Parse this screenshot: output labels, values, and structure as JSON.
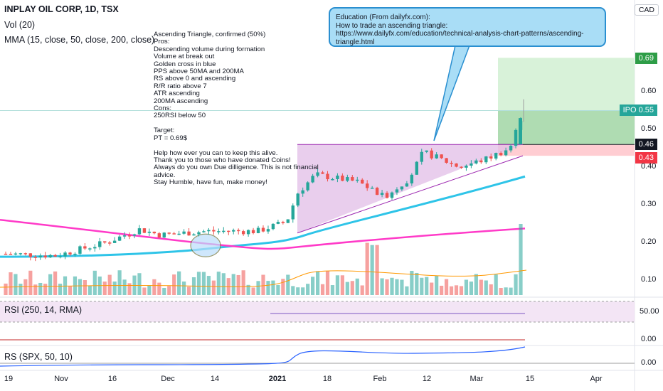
{
  "header": {
    "title": "INPLAY OIL CORP, 1D, TSX",
    "vol": "Vol (20)",
    "mma": "MMA (15, close, 50, close, 200, close)",
    "rsi": "RSI (250, 14, RMA)",
    "rs": "RS (SPX, 50, 10)",
    "currency": "CAD"
  },
  "note_lines": [
    "Ascending Triangle, confirmed (50%)",
    "Pros:",
    "Descending volume during formation",
    "Volume at break out",
    "Golden cross in blue",
    "PPS above 50MA and 200MA",
    "RS above 0 and ascending",
    "R/R ratio above 7",
    "ATR ascending",
    "200MA ascending",
    "Cons:",
    "250RSI below 50",
    "",
    "Target:",
    "PT = 0.69$",
    "",
    "Help how ever you can to keep this alive.",
    "Thank you to those who have donated Coins!",
    "Always do you own Due dilligence. This is not financial",
    "advice.",
    "Stay Humble, have fun, make money!"
  ],
  "callout": {
    "line1": "Education (From dailyfx.com):",
    "line2": "How to trade an ascending triangle:",
    "line3": "https://www.dailyfx.com/education/technical-analysis-chart-patterns/ascending-triangle.html"
  },
  "badges": {
    "target": "0.69",
    "ipo_label": "IPO",
    "ipo_price": "0.55",
    "last": "0.46",
    "stop": "0.43"
  },
  "colors": {
    "up": "#26a69a",
    "down": "#ef5350",
    "ma50": "#2ec4e8",
    "ma200": "#ff3ac8",
    "triangle": "#e1bee7",
    "target_zone": "#a5d6a7",
    "stop_zone": "#ffcdd2",
    "rs_line": "#2962ff",
    "rsi_line": "#7e57c2"
  },
  "chart_data": [
    {
      "type": "candlestick",
      "title": "INPLAY OIL CORP, 1D, TSX",
      "y_axis_ticks": [
        0.1,
        0.2,
        0.3,
        0.4,
        0.5,
        0.6
      ],
      "x_axis_labels": [
        "19",
        "Nov",
        "16",
        "Dec",
        "14",
        "2021",
        "18",
        "Feb",
        "12",
        "Mar",
        "15",
        "Apr"
      ],
      "approx_close_path": [
        {
          "date": "2020-10-19",
          "close": 0.17
        },
        {
          "date": "2020-11-02",
          "close": 0.165
        },
        {
          "date": "2020-11-16",
          "close": 0.2
        },
        {
          "date": "2020-11-25",
          "close": 0.235
        },
        {
          "date": "2020-12-01",
          "close": 0.22
        },
        {
          "date": "2020-12-14",
          "close": 0.23
        },
        {
          "date": "2020-12-28",
          "close": 0.23
        },
        {
          "date": "2021-01-05",
          "close": 0.255
        },
        {
          "date": "2021-01-08",
          "close": 0.33
        },
        {
          "date": "2021-01-13",
          "close": 0.38
        },
        {
          "date": "2021-01-25",
          "close": 0.36
        },
        {
          "date": "2021-02-01",
          "close": 0.32
        },
        {
          "date": "2021-02-08",
          "close": 0.37
        },
        {
          "date": "2021-02-12",
          "close": 0.44
        },
        {
          "date": "2021-02-22",
          "close": 0.4
        },
        {
          "date": "2021-03-01",
          "close": 0.42
        },
        {
          "date": "2021-03-08",
          "close": 0.45
        },
        {
          "date": "2021-03-11",
          "close": 0.53
        }
      ],
      "moving_averages": [
        {
          "name": "MA50",
          "start": 0.16,
          "end": 0.38
        },
        {
          "name": "MA200",
          "start": 0.26,
          "end": 0.24
        }
      ],
      "pattern": {
        "name": "Ascending Triangle",
        "resistance": 0.46
      },
      "levels": {
        "target": 0.69,
        "ipo": 0.55,
        "last": 0.46,
        "stop": 0.43
      }
    },
    {
      "type": "bar",
      "title": "Vol (20)"
    },
    {
      "type": "line",
      "title": "RSI (250, 14, RMA)",
      "y_axis_ticks": [
        50.0
      ],
      "approx_value": 48
    },
    {
      "type": "line",
      "title": "RS (SPX, 50, 10)",
      "y_axis_ticks": [
        0.0
      ],
      "approx_values": [
        -0.01,
        0.0,
        0.02,
        0.04,
        0.06
      ]
    }
  ]
}
